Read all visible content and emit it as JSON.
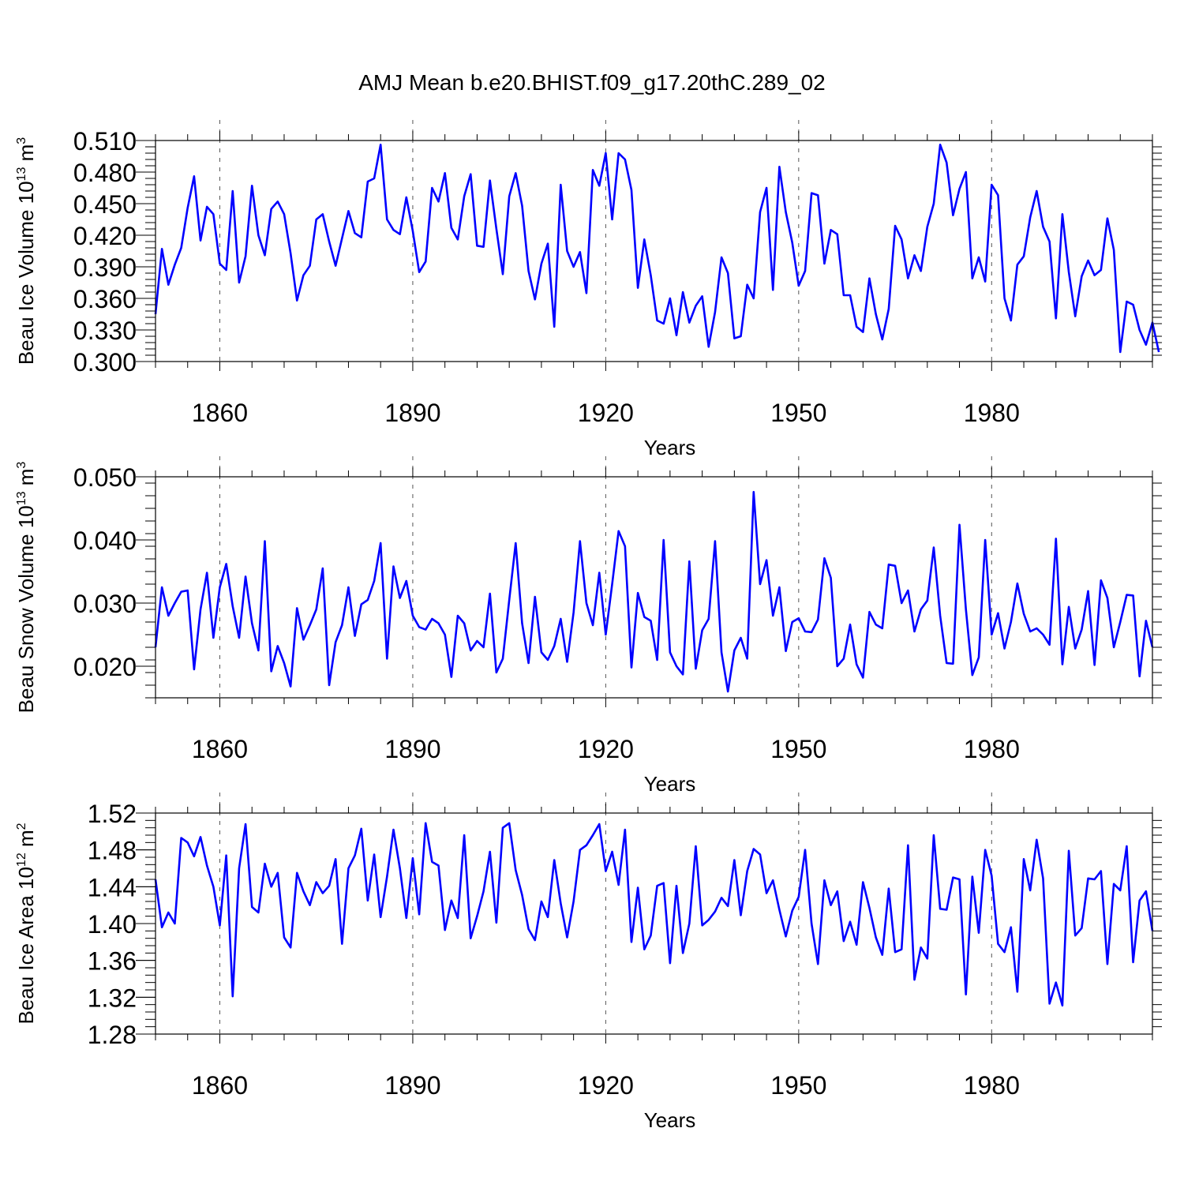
{
  "figure": {
    "title": "AMJ Mean b.e20.BHIST.f09_g17.20thC.289_02",
    "line_color": "#0000ff"
  },
  "chart_data": [
    {
      "type": "line",
      "title": "AMJ Mean b.e20.BHIST.f09_g17.20thC.289_02",
      "xlabel": "Years",
      "ylabel_main": "Beau Ice Volume 10",
      "ylabel_exp": "13",
      "ylabel_unit": " m",
      "ylabel_unit_exp": "3",
      "xlim": [
        1850,
        2005
      ],
      "ylim": [
        0.3,
        0.51
      ],
      "xticks": [
        "1860",
        "1890",
        "1920",
        "1950",
        "1980"
      ],
      "yticks": [
        "0.300",
        "0.330",
        "0.360",
        "0.390",
        "0.420",
        "0.450",
        "0.480",
        "0.510"
      ],
      "x_start": 1850,
      "series": [
        {
          "name": "Beau Ice Volume",
          "values": [
            0.345,
            0.407,
            0.373,
            0.392,
            0.408,
            0.446,
            0.476,
            0.415,
            0.447,
            0.44,
            0.393,
            0.387,
            0.462,
            0.375,
            0.4,
            0.467,
            0.42,
            0.401,
            0.445,
            0.452,
            0.44,
            0.403,
            0.358,
            0.382,
            0.391,
            0.435,
            0.44,
            0.414,
            0.391,
            0.417,
            0.443,
            0.422,
            0.418,
            0.471,
            0.474,
            0.506,
            0.435,
            0.425,
            0.421,
            0.456,
            0.424,
            0.385,
            0.395,
            0.465,
            0.452,
            0.479,
            0.427,
            0.416,
            0.457,
            0.478,
            0.41,
            0.409,
            0.472,
            0.426,
            0.383,
            0.457,
            0.479,
            0.448,
            0.386,
            0.359,
            0.393,
            0.412,
            0.333,
            0.468,
            0.405,
            0.39,
            0.404,
            0.365,
            0.482,
            0.467,
            0.498,
            0.435,
            0.498,
            0.492,
            0.463,
            0.37,
            0.416,
            0.382,
            0.339,
            0.336,
            0.36,
            0.325,
            0.366,
            0.337,
            0.353,
            0.362,
            0.314,
            0.347,
            0.399,
            0.384,
            0.322,
            0.324,
            0.373,
            0.36,
            0.442,
            0.465,
            0.368,
            0.485,
            0.442,
            0.413,
            0.372,
            0.386,
            0.46,
            0.458,
            0.393,
            0.425,
            0.421,
            0.363,
            0.363,
            0.333,
            0.328,
            0.379,
            0.345,
            0.321,
            0.35,
            0.429,
            0.416,
            0.379,
            0.401,
            0.386,
            0.428,
            0.45,
            0.506,
            0.489,
            0.439,
            0.464,
            0.48,
            0.379,
            0.399,
            0.376,
            0.468,
            0.458,
            0.36,
            0.339,
            0.392,
            0.4,
            0.437,
            0.462,
            0.428,
            0.414,
            0.341,
            0.44,
            0.385,
            0.343,
            0.381,
            0.396,
            0.382,
            0.387,
            0.436,
            0.406,
            0.309,
            0.357,
            0.354,
            0.33,
            0.316,
            0.337,
            0.309
          ]
        }
      ]
    },
    {
      "type": "line",
      "xlabel": "Years",
      "ylabel_main": "Beau Snow Volume 10",
      "ylabel_exp": "13",
      "ylabel_unit": " m",
      "ylabel_unit_exp": "3",
      "xlim": [
        1850,
        2005
      ],
      "ylim": [
        0.015,
        0.05
      ],
      "xticks": [
        "1860",
        "1890",
        "1920",
        "1950",
        "1980"
      ],
      "yticks": [
        "0.020",
        "0.030",
        "0.040",
        "0.050"
      ],
      "x_start": 1850,
      "series": [
        {
          "name": "Beau Snow Volume",
          "values": [
            0.023,
            0.0325,
            0.028,
            0.03,
            0.0318,
            0.032,
            0.0195,
            0.029,
            0.0348,
            0.0245,
            0.0325,
            0.0362,
            0.0295,
            0.0245,
            0.0342,
            0.0268,
            0.0225,
            0.0398,
            0.0192,
            0.0232,
            0.0205,
            0.0168,
            0.0292,
            0.0242,
            0.0265,
            0.029,
            0.0355,
            0.017,
            0.0238,
            0.0265,
            0.0325,
            0.0248,
            0.0298,
            0.0305,
            0.0335,
            0.0395,
            0.0212,
            0.0358,
            0.0308,
            0.0335,
            0.028,
            0.0262,
            0.0258,
            0.0275,
            0.0268,
            0.025,
            0.0183,
            0.028,
            0.0268,
            0.0225,
            0.024,
            0.023,
            0.0315,
            0.019,
            0.0212,
            0.0305,
            0.0395,
            0.0268,
            0.0205,
            0.031,
            0.0222,
            0.021,
            0.0232,
            0.0275,
            0.0207,
            0.0285,
            0.0398,
            0.03,
            0.0265,
            0.0348,
            0.025,
            0.033,
            0.0414,
            0.039,
            0.0198,
            0.0316,
            0.0278,
            0.0272,
            0.021,
            0.04,
            0.0222,
            0.02,
            0.0187,
            0.0366,
            0.0196,
            0.0257,
            0.0275,
            0.0398,
            0.0222,
            0.016,
            0.0225,
            0.0245,
            0.0212,
            0.0476,
            0.033,
            0.0368,
            0.028,
            0.0325,
            0.0224,
            0.027,
            0.0276,
            0.0255,
            0.0254,
            0.0274,
            0.0371,
            0.034,
            0.02,
            0.0212,
            0.0266,
            0.0203,
            0.0182,
            0.0286,
            0.0266,
            0.026,
            0.0361,
            0.0359,
            0.03,
            0.032,
            0.0255,
            0.029,
            0.0304,
            0.0388,
            0.028,
            0.0205,
            0.0204,
            0.0424,
            0.029,
            0.0186,
            0.0214,
            0.04,
            0.025,
            0.0284,
            0.0228,
            0.027,
            0.0331,
            0.0283,
            0.0255,
            0.026,
            0.025,
            0.0234,
            0.0402,
            0.0203,
            0.0294,
            0.0228,
            0.0258,
            0.0319,
            0.0202,
            0.0336,
            0.0308,
            0.023,
            0.027,
            0.0313,
            0.0312,
            0.0184,
            0.0272,
            0.023
          ]
        }
      ]
    },
    {
      "type": "line",
      "xlabel": "Years",
      "ylabel_main": "Beau Ice Area 10",
      "ylabel_exp": "12",
      "ylabel_unit": " m",
      "ylabel_unit_exp": "2",
      "xlim": [
        1850,
        2005
      ],
      "ylim": [
        1.28,
        1.52
      ],
      "xticks": [
        "1860",
        "1890",
        "1920",
        "1950",
        "1980"
      ],
      "yticks": [
        "1.28",
        "1.32",
        "1.36",
        "1.40",
        "1.44",
        "1.48",
        "1.52"
      ],
      "x_start": 1850,
      "series": [
        {
          "name": "Beau Ice Area",
          "values": [
            1.448,
            1.396,
            1.412,
            1.4,
            1.493,
            1.488,
            1.473,
            1.494,
            1.463,
            1.44,
            1.398,
            1.474,
            1.321,
            1.46,
            1.508,
            1.418,
            1.412,
            1.465,
            1.44,
            1.455,
            1.385,
            1.374,
            1.455,
            1.435,
            1.42,
            1.445,
            1.433,
            1.441,
            1.47,
            1.378,
            1.46,
            1.474,
            1.503,
            1.425,
            1.475,
            1.407,
            1.451,
            1.502,
            1.46,
            1.406,
            1.471,
            1.41,
            1.509,
            1.467,
            1.463,
            1.393,
            1.425,
            1.406,
            1.496,
            1.384,
            1.408,
            1.435,
            1.478,
            1.401,
            1.504,
            1.509,
            1.458,
            1.431,
            1.394,
            1.382,
            1.424,
            1.407,
            1.469,
            1.422,
            1.385,
            1.424,
            1.48,
            1.485,
            1.496,
            1.508,
            1.457,
            1.478,
            1.442,
            1.502,
            1.38,
            1.439,
            1.372,
            1.387,
            1.441,
            1.444,
            1.357,
            1.441,
            1.368,
            1.4,
            1.484,
            1.398,
            1.404,
            1.413,
            1.428,
            1.419,
            1.469,
            1.409,
            1.457,
            1.481,
            1.475,
            1.433,
            1.447,
            1.415,
            1.386,
            1.414,
            1.429,
            1.48,
            1.4,
            1.356,
            1.447,
            1.42,
            1.435,
            1.381,
            1.402,
            1.377,
            1.445,
            1.417,
            1.385,
            1.366,
            1.438,
            1.369,
            1.372,
            1.485,
            1.339,
            1.374,
            1.362,
            1.496,
            1.416,
            1.415,
            1.45,
            1.448,
            1.323,
            1.451,
            1.39,
            1.48,
            1.452,
            1.378,
            1.369,
            1.396,
            1.326,
            1.47,
            1.436,
            1.491,
            1.449,
            1.313,
            1.336,
            1.311,
            1.479,
            1.387,
            1.395,
            1.449,
            1.448,
            1.457,
            1.356,
            1.443,
            1.436,
            1.484,
            1.358,
            1.425,
            1.435,
            1.392
          ]
        }
      ]
    }
  ]
}
